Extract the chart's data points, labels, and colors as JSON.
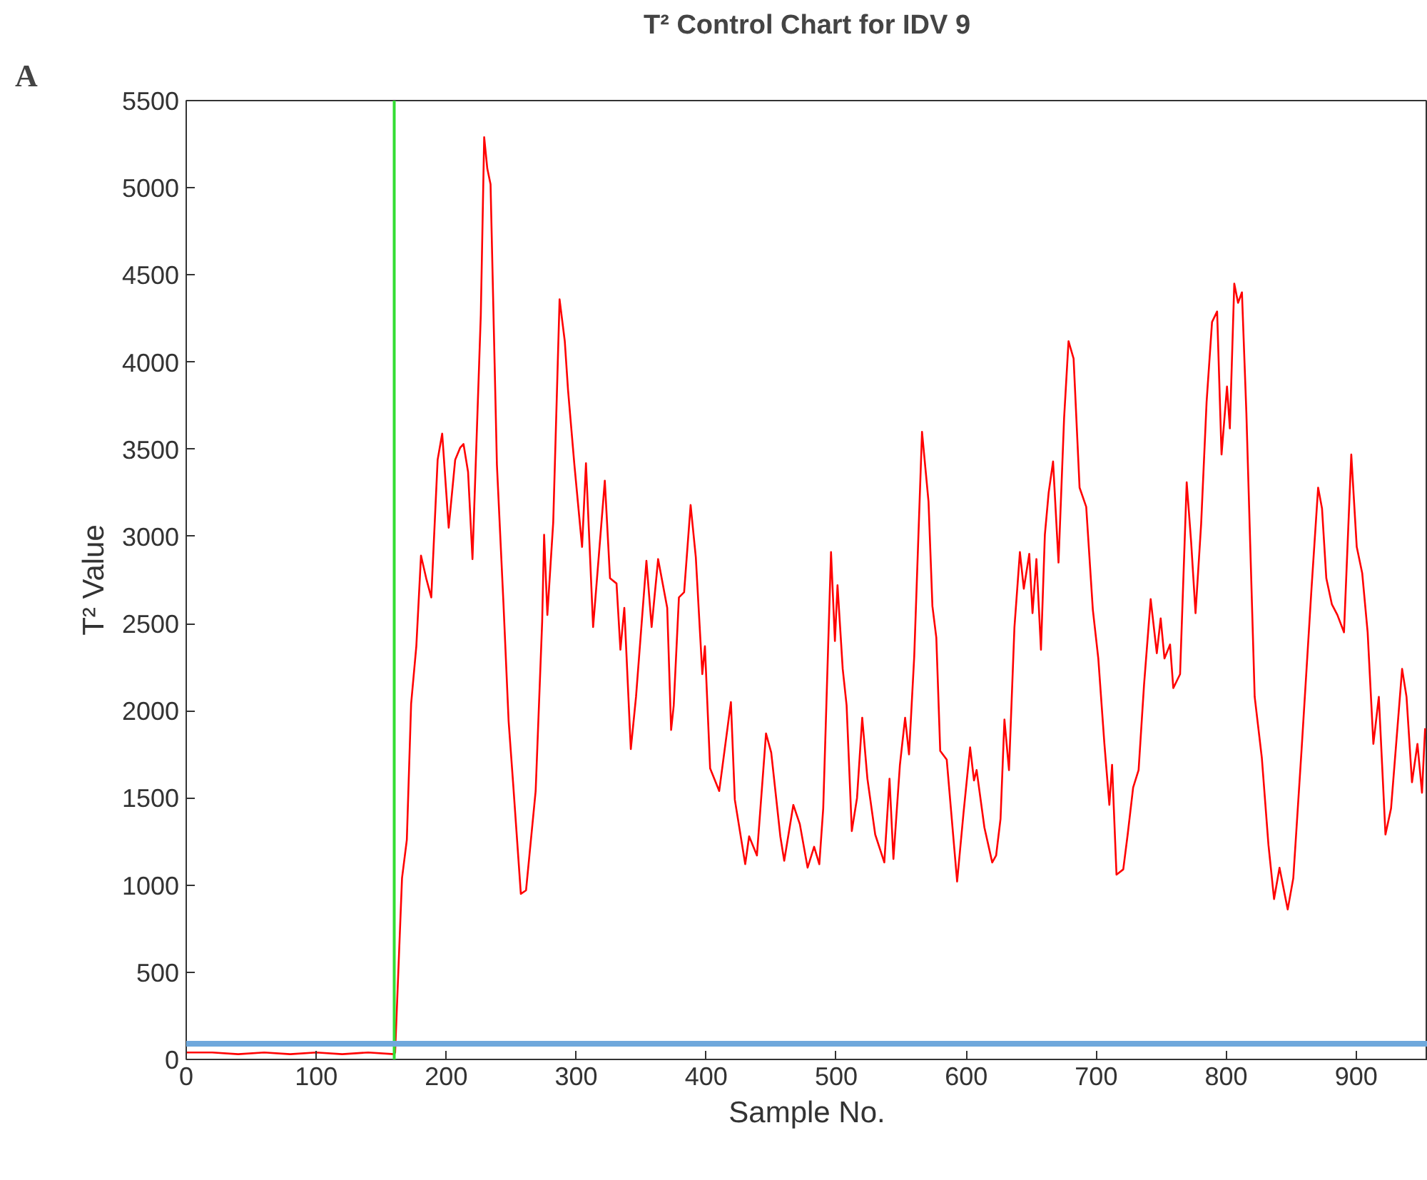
{
  "chart_data": {
    "type": "line",
    "title": "T² Control Chart for IDV 9",
    "xlabel": "Sample No.",
    "ylabel": "T² Value",
    "annotations": [
      "A"
    ],
    "xlim": [
      0,
      955
    ],
    "ylim": [
      0,
      5500
    ],
    "xticks": [
      0,
      100,
      200,
      300,
      400,
      500,
      600,
      700,
      800,
      900
    ],
    "yticks": [
      0,
      500,
      1000,
      1500,
      2000,
      2500,
      3000,
      3500,
      4000,
      4500,
      5000,
      5500
    ],
    "grid": false,
    "marker": "none",
    "line_style": "solid",
    "ref_lines": [
      {
        "axis": "x",
        "value": 160,
        "label": null,
        "color": "#33dd33"
      },
      {
        "axis": "y",
        "value": 90,
        "label": null,
        "color": "#6fa8dc"
      }
    ],
    "series": [
      {
        "color": "#ff0000",
        "x": [
          0,
          20,
          40,
          60,
          80,
          100,
          120,
          140,
          160,
          160.7,
          166,
          169.7,
          173,
          177,
          180.6,
          184.6,
          188.5,
          193.4,
          196.9,
          201.9,
          206.9,
          210.8,
          213.3,
          216.8,
          220.2,
          226.6,
          229.2,
          231.6,
          234.1,
          239,
          244,
          248,
          251.5,
          257.4,
          261.4,
          268.8,
          273.8,
          275.3,
          277.8,
          282.3,
          287.2,
          291.2,
          293.7,
          298.6,
          304.5,
          307.5,
          313,
          322,
          326,
          331,
          334,
          337,
          342,
          346,
          354,
          358,
          363,
          370,
          373,
          375,
          379,
          383,
          388,
          392,
          397,
          399,
          403,
          410,
          419,
          422,
          430,
          433,
          439,
          446,
          450,
          457,
          460,
          467,
          472,
          478,
          483,
          487,
          490,
          496,
          499,
          501,
          505,
          508,
          512,
          516,
          520,
          524,
          530,
          537,
          541,
          544,
          549,
          553,
          556,
          560,
          566,
          571,
          574,
          577,
          580,
          585,
          593,
          598,
          603,
          606,
          608,
          614,
          620,
          623,
          626.4,
          629.4,
          632.9,
          637.1,
          641.3,
          644.3,
          648.5,
          651,
          654,
          657.5,
          660.5,
          663.4,
          666.8,
          671,
          675.3,
          678.7,
          682.6,
          687.2,
          692.3,
          697.4,
          701.6,
          706.3,
          710.1,
          712.2,
          715.6,
          720.8,
          724.2,
          728.4,
          732.6,
          736.8,
          741.9,
          746.6,
          749.6,
          752.5,
          756.8,
          759.3,
          764.5,
          769.6,
          773,
          776.4,
          780.7,
          784.9,
          789.1,
          793,
          796.4,
          800.6,
          802.8,
          806.2,
          809.1,
          812.1,
          815.5,
          821.9,
          827.4,
          832.5,
          836.8,
          841,
          847.3,
          851.6,
          858,
          865.6,
          870.7,
          873.7,
          877,
          881.3,
          885.5,
          890.6,
          896.2,
          900.4,
          904.6,
          908.8,
          913.2,
          917.4,
          922.5,
          926.8,
          935.3,
          938.7,
          942.9,
          947.1,
          950.6,
          953
        ],
        "values": [
          40,
          40,
          30,
          40,
          30,
          40,
          30,
          40,
          30,
          40,
          1040,
          1260,
          2040,
          2370,
          2890,
          2760,
          2650,
          3440,
          3590,
          3050,
          3440,
          3510,
          3530,
          3370,
          2870,
          4270,
          5290,
          5110,
          5020,
          3410,
          2620,
          1940,
          1580,
          950,
          970,
          1540,
          2510,
          3010,
          2550,
          3080,
          4360,
          4120,
          3840,
          3410,
          2940,
          3420,
          2480,
          3320,
          2760,
          2730,
          2350,
          2590,
          1780,
          2080,
          2860,
          2480,
          2870,
          2590,
          1890,
          2030,
          2650,
          2680,
          3180,
          2880,
          2210,
          2370,
          1670,
          1540,
          2050,
          1490,
          1120,
          1280,
          1170,
          1870,
          1760,
          1280,
          1140,
          1460,
          1350,
          1100,
          1220,
          1120,
          1440,
          2910,
          2400,
          2720,
          2240,
          2030,
          1310,
          1500,
          1960,
          1610,
          1290,
          1130,
          1610,
          1150,
          1690,
          1960,
          1750,
          2310,
          3600,
          3200,
          2600,
          2420,
          1770,
          1720,
          1020,
          1420,
          1790,
          1600,
          1660,
          1330,
          1130,
          1170,
          1380,
          1950,
          1660,
          2480,
          2910,
          2700,
          2900,
          2560,
          2870,
          2350,
          3010,
          3250,
          3430,
          2850,
          3680,
          4120,
          4020,
          3280,
          3170,
          2580,
          2300,
          1810,
          1460,
          1690,
          1060,
          1090,
          1290,
          1560,
          1660,
          2150,
          2640,
          2330,
          2530,
          2300,
          2380,
          2130,
          2210,
          3310,
          2970,
          2560,
          3070,
          3770,
          4230,
          4290,
          3470,
          3860,
          3620,
          4450,
          4340,
          4400,
          3710,
          2080,
          1730,
          1230,
          920,
          1100,
          860,
          1040,
          1780,
          2700,
          3280,
          3160,
          2760,
          2610,
          2550,
          2450,
          3470,
          2940,
          2790,
          2450,
          1810,
          2080,
          1290,
          1440,
          2240,
          2080,
          1590,
          1810,
          1530,
          1900
        ]
      }
    ]
  }
}
